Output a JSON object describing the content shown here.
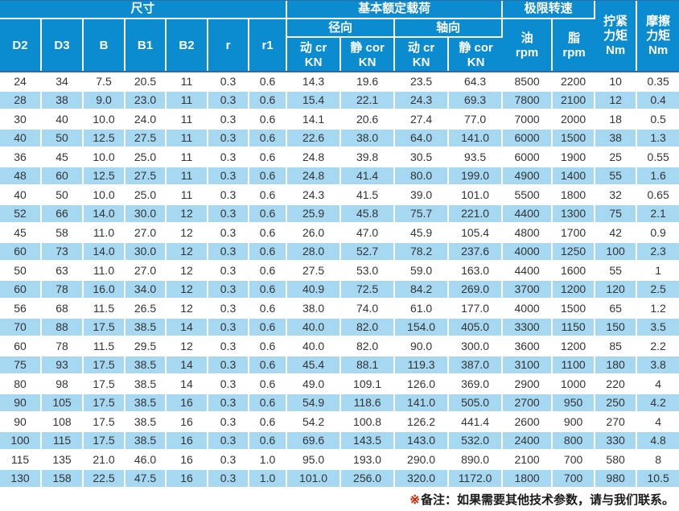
{
  "table": {
    "header": {
      "dim_group": "尺寸",
      "load_group": "基本额定载荷",
      "speed_group": "极限转速",
      "radial_group": "径向",
      "axial_group": "轴向",
      "dim_cols": [
        "D2",
        "D3",
        "B",
        "B1",
        "B2",
        "r",
        "r1"
      ],
      "load_cols": [
        "动 cr\nKN",
        "静 cor\nKN",
        "动 cr\nKN",
        "静 cor\nKN"
      ],
      "oil_col": "油\nrpm",
      "grease_col": "脂\nrpm",
      "tighten_col": "拧紧\n力矩\nNm",
      "friction_col": "摩擦\n力矩\nNm"
    },
    "rows": [
      [
        "24",
        "34",
        "7.5",
        "20.5",
        "11",
        "0.3",
        "0.6",
        "14.3",
        "19.6",
        "23.5",
        "64.3",
        "8500",
        "2200",
        "10",
        "0.35"
      ],
      [
        "28",
        "38",
        "9.0",
        "23.0",
        "11",
        "0.3",
        "0.6",
        "15.4",
        "22.1",
        "24.3",
        "69.3",
        "7800",
        "2100",
        "12",
        "0.4"
      ],
      [
        "30",
        "40",
        "10.0",
        "24.0",
        "11",
        "0.3",
        "0.6",
        "14.1",
        "20.6",
        "27.4",
        "77.0",
        "7000",
        "2000",
        "18",
        "0.5"
      ],
      [
        "40",
        "50",
        "12.5",
        "27.5",
        "11",
        "0.3",
        "0.6",
        "22.6",
        "38.0",
        "64.0",
        "141.0",
        "6000",
        "1500",
        "38",
        "1.3"
      ],
      [
        "36",
        "45",
        "10.0",
        "25.0",
        "11",
        "0.3",
        "0.6",
        "24.8",
        "39.8",
        "30.5",
        "93.5",
        "6000",
        "1900",
        "25",
        "0.55"
      ],
      [
        "48",
        "60",
        "12.5",
        "27.5",
        "11",
        "0.3",
        "0.6",
        "24.8",
        "41.4",
        "80.0",
        "199.0",
        "4900",
        "1400",
        "55",
        "1.6"
      ],
      [
        "40",
        "50",
        "10.0",
        "25.0",
        "11",
        "0.3",
        "0.6",
        "24.3",
        "41.5",
        "39.0",
        "101.0",
        "5500",
        "1800",
        "32",
        "0.65"
      ],
      [
        "52",
        "66",
        "14.0",
        "30.0",
        "12",
        "0.3",
        "0.6",
        "25.9",
        "45.8",
        "75.7",
        "221.0",
        "4400",
        "1300",
        "75",
        "2.1"
      ],
      [
        "45",
        "58",
        "11.0",
        "27.0",
        "12",
        "0.3",
        "0.6",
        "26.0",
        "47.0",
        "45.9",
        "105.4",
        "4800",
        "1700",
        "42",
        "0.9"
      ],
      [
        "60",
        "73",
        "14.0",
        "30.0",
        "12",
        "0.3",
        "0.6",
        "28.0",
        "52.7",
        "78.2",
        "237.6",
        "4000",
        "1250",
        "100",
        "2.3"
      ],
      [
        "50",
        "63",
        "11.0",
        "27.0",
        "12",
        "0.3",
        "0.6",
        "27.5",
        "53.0",
        "59.0",
        "163.0",
        "4400",
        "1600",
        "55",
        "1"
      ],
      [
        "60",
        "78",
        "16.0",
        "34.0",
        "12",
        "0.3",
        "0.6",
        "40.9",
        "72.5",
        "84.2",
        "269.0",
        "3700",
        "1200",
        "120",
        "2.5"
      ],
      [
        "56",
        "68",
        "11.5",
        "26.5",
        "12",
        "0.3",
        "0.6",
        "38.0",
        "74.0",
        "61.0",
        "177.0",
        "4000",
        "1500",
        "65",
        "1.2"
      ],
      [
        "70",
        "88",
        "17.5",
        "38.5",
        "14",
        "0.3",
        "0.6",
        "40.0",
        "82.0",
        "154.0",
        "405.0",
        "3300",
        "1150",
        "150",
        "3.5"
      ],
      [
        "60",
        "78",
        "11.5",
        "29.5",
        "12",
        "0.3",
        "0.6",
        "40.0",
        "82.0",
        "90.0",
        "300.0",
        "3600",
        "1200",
        "85",
        "2.2"
      ],
      [
        "75",
        "93",
        "17.5",
        "38.5",
        "14",
        "0.3",
        "0.6",
        "45.4",
        "88.1",
        "119.3",
        "387.0",
        "3100",
        "1100",
        "180",
        "3.8"
      ],
      [
        "80",
        "98",
        "17.5",
        "38.5",
        "14",
        "0.3",
        "0.6",
        "49.0",
        "109.1",
        "126.0",
        "369.0",
        "2900",
        "1000",
        "220",
        "4"
      ],
      [
        "90",
        "105",
        "17.5",
        "38.5",
        "16",
        "0.3",
        "0.6",
        "54.9",
        "118.6",
        "141.0",
        "505.0",
        "2700",
        "950",
        "250",
        "4.2"
      ],
      [
        "90",
        "108",
        "17.5",
        "38.5",
        "16",
        "0.3",
        "0.6",
        "54.2",
        "100.8",
        "126.2",
        "441.4",
        "2600",
        "900",
        "270",
        "4"
      ],
      [
        "100",
        "115",
        "17.5",
        "38.5",
        "16",
        "0.3",
        "0.6",
        "69.6",
        "143.5",
        "143.0",
        "532.0",
        "2400",
        "800",
        "330",
        "4.8"
      ],
      [
        "115",
        "135",
        "21.0",
        "46.0",
        "16",
        "0.3",
        "1.0",
        "95.0",
        "193.0",
        "290.0",
        "890.0",
        "2100",
        "700",
        "580",
        "8"
      ],
      [
        "130",
        "158",
        "22.5",
        "47.5",
        "16",
        "0.3",
        "1.0",
        "101.0",
        "256.0",
        "320.0",
        "1172.0",
        "1800",
        "700",
        "980",
        "10.5"
      ]
    ]
  },
  "footer": {
    "marker": "※",
    "note": "备注：如果需要其他技术参数，请与我们联系。"
  },
  "colors": {
    "header_bg": "#0b8bd0",
    "stripe_bg": "#a6d8f2",
    "accent_red": "#cc2200"
  }
}
